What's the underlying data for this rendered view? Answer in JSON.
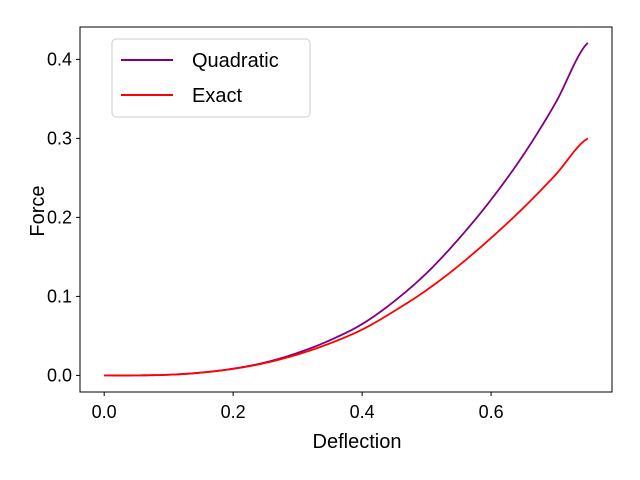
{
  "chart_data": {
    "type": "line",
    "title": "",
    "xlabel": "Deflection",
    "ylabel": "Force",
    "xlim": [
      -0.0375,
      0.7875
    ],
    "ylim": [
      -0.021,
      0.441
    ],
    "xticks": [
      0.0,
      0.2,
      0.4,
      0.6
    ],
    "xtick_labels": [
      "0.0",
      "0.2",
      "0.4",
      "0.6"
    ],
    "yticks": [
      0.0,
      0.1,
      0.2,
      0.3,
      0.4
    ],
    "ytick_labels": [
      "0.0",
      "0.1",
      "0.2",
      "0.3",
      "0.4"
    ],
    "grid": false,
    "legend_position": "top-left",
    "x": [
      0.0,
      0.05,
      0.1,
      0.15,
      0.2,
      0.25,
      0.3,
      0.35,
      0.4,
      0.45,
      0.5,
      0.55,
      0.6,
      0.65,
      0.7,
      0.75
    ],
    "series": [
      {
        "name": "Quadratic",
        "color": "#800080",
        "values": [
          0.0,
          4e-05,
          0.0008,
          0.0035,
          0.0085,
          0.0165,
          0.0285,
          0.0445,
          0.065,
          0.094,
          0.1295,
          0.173,
          0.2225,
          0.279,
          0.345,
          0.421
        ]
      },
      {
        "name": "Exact",
        "color": "#ff0000",
        "values": [
          0.0,
          4e-05,
          0.0008,
          0.0035,
          0.0083,
          0.0158,
          0.0265,
          0.0405,
          0.058,
          0.0815,
          0.108,
          0.139,
          0.174,
          0.212,
          0.254,
          0.3
        ]
      }
    ]
  }
}
